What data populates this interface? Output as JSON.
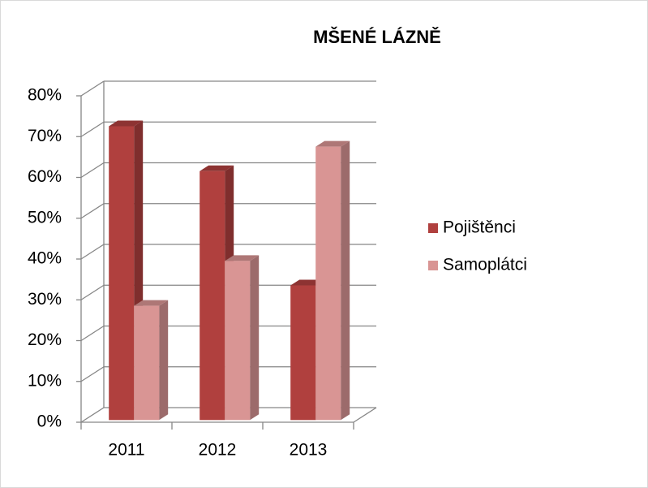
{
  "chart_data": {
    "type": "bar3d",
    "title": "MŠENÉ LÁZNĚ",
    "categories": [
      "2011",
      "2012",
      "2013"
    ],
    "series": [
      {
        "name": "Pojištěnci",
        "color": "#b0403e",
        "values": [
          72,
          61,
          33
        ]
      },
      {
        "name": "Samoplátci",
        "color": "#d99594",
        "values": [
          28,
          39,
          67
        ]
      }
    ],
    "ylim": [
      0,
      80
    ],
    "yticks": [
      {
        "value": 0,
        "label": "0%"
      },
      {
        "value": 10,
        "label": "10%"
      },
      {
        "value": 20,
        "label": "20%"
      },
      {
        "value": 30,
        "label": "30%"
      },
      {
        "value": 40,
        "label": "40%"
      },
      {
        "value": 50,
        "label": "50%"
      },
      {
        "value": 60,
        "label": "60%"
      },
      {
        "value": 70,
        "label": "70%"
      },
      {
        "value": 80,
        "label": "80%"
      }
    ],
    "grid": true,
    "legend": "right"
  }
}
